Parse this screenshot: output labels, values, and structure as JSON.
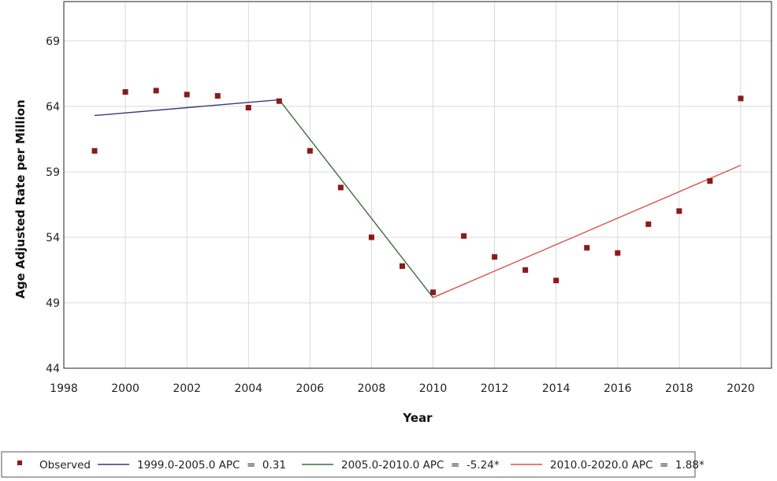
{
  "chart_data": {
    "type": "scatter",
    "xlabel": "Year",
    "ylabel": "Age Adjusted Rate per Million",
    "xlim": [
      1998,
      2021
    ],
    "ylim": [
      44,
      72
    ],
    "x_ticks": [
      "1998",
      "2000",
      "2002",
      "2004",
      "2006",
      "2008",
      "2010",
      "2012",
      "2014",
      "2016",
      "2018",
      "2020"
    ],
    "y_ticks": [
      "44",
      "49",
      "54",
      "59",
      "64",
      "69"
    ],
    "grid": true,
    "legend_position": "bottom",
    "series": [
      {
        "name": "Observed",
        "kind": "points",
        "color": "#8b1a1a",
        "x": [
          1999,
          2000,
          2001,
          2002,
          2003,
          2004,
          2005,
          2006,
          2007,
          2008,
          2009,
          2010,
          2011,
          2012,
          2013,
          2014,
          2015,
          2016,
          2017,
          2018,
          2019,
          2020
        ],
        "y": [
          60.6,
          65.1,
          65.2,
          64.9,
          64.8,
          63.9,
          64.4,
          60.6,
          57.8,
          54.0,
          51.8,
          49.8,
          54.1,
          52.5,
          51.5,
          50.7,
          53.2,
          52.8,
          55.0,
          56.0,
          58.3,
          64.6
        ]
      },
      {
        "name": "1999.0-2005.0 APC  =  0.31",
        "kind": "line",
        "color": "#3a3a7a",
        "x": [
          1999,
          2005
        ],
        "y": [
          63.3,
          64.5
        ]
      },
      {
        "name": "2005.0-2010.0 APC  =  -5.24*",
        "kind": "line",
        "color": "#3d6b3d",
        "x": [
          2005,
          2010
        ],
        "y": [
          64.5,
          49.4
        ]
      },
      {
        "name": "2010.0-2020.0 APC  =  1.88*",
        "kind": "line",
        "color": "#d9534f",
        "x": [
          2010,
          2020
        ],
        "y": [
          49.4,
          59.5
        ]
      }
    ]
  }
}
